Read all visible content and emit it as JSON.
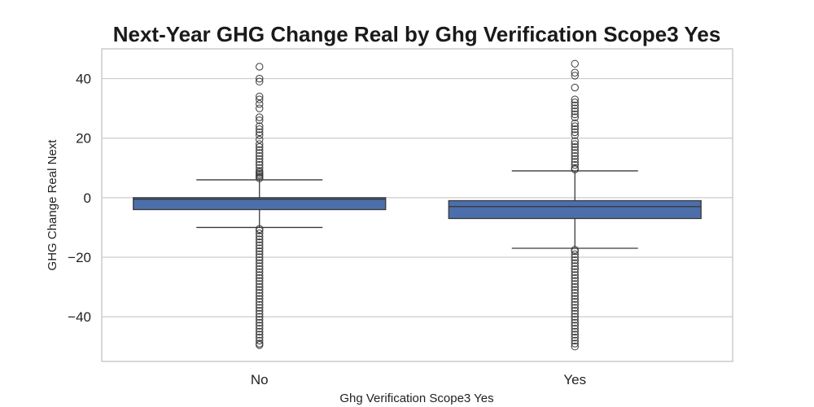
{
  "chart_data": {
    "type": "boxplot",
    "title": "Next-Year GHG Change Real by Ghg Verification Scope3 Yes",
    "xlabel": "Ghg Verification Scope3 Yes",
    "ylabel": "GHG Change Real Next",
    "ylim": [
      -55,
      50
    ],
    "yticks": [
      40,
      20,
      0,
      -20,
      -40
    ],
    "ytick_labels": [
      "40",
      "20",
      "0",
      "−20",
      "−40"
    ],
    "grid": true,
    "colors": {
      "box": "#4c6fab",
      "line": "#3a3a3a",
      "grid": "#cccccc"
    },
    "categories": [
      "No",
      "Yes"
    ],
    "boxes": [
      {
        "category": "No",
        "whisker_low": -10,
        "q1": -4,
        "median": -0.5,
        "q3": 0,
        "whisker_high": 6,
        "fliers_high": [
          6.5,
          7,
          7.5,
          8,
          8.5,
          9,
          10,
          11,
          12,
          13,
          14,
          15,
          16,
          17,
          18,
          19.5,
          21,
          22,
          23,
          24,
          26,
          27,
          30,
          31.5,
          33,
          34,
          39,
          40,
          44
        ],
        "fliers_low": [
          -10.5,
          -11,
          -12,
          -13,
          -14,
          -15,
          -16,
          -17,
          -18,
          -19,
          -20,
          -21,
          -22,
          -23,
          -24,
          -25,
          -26,
          -27,
          -28,
          -29,
          -30,
          -31,
          -32,
          -33,
          -34,
          -35,
          -36,
          -37,
          -38,
          -39,
          -40,
          -41,
          -42,
          -43,
          -44,
          -45,
          -46,
          -47,
          -48,
          -49,
          -49.5
        ]
      },
      {
        "category": "Yes",
        "whisker_low": -17,
        "q1": -7,
        "median": -3,
        "q3": -1,
        "whisker_high": 9,
        "fliers_high": [
          9.5,
          10,
          11,
          12,
          13,
          14,
          15,
          16,
          17,
          18,
          19,
          21,
          22,
          23,
          24,
          25,
          27,
          28,
          29,
          30,
          31,
          32,
          33,
          37,
          41,
          42,
          45
        ],
        "fliers_low": [
          -17.5,
          -18,
          -19,
          -20,
          -21,
          -22,
          -23,
          -24,
          -25,
          -26,
          -27,
          -28,
          -29,
          -30,
          -31,
          -32,
          -33,
          -34,
          -35,
          -36,
          -37,
          -38,
          -39,
          -40,
          -41,
          -42,
          -43,
          -44,
          -45,
          -46,
          -47,
          -48,
          -49,
          -50
        ]
      }
    ]
  }
}
